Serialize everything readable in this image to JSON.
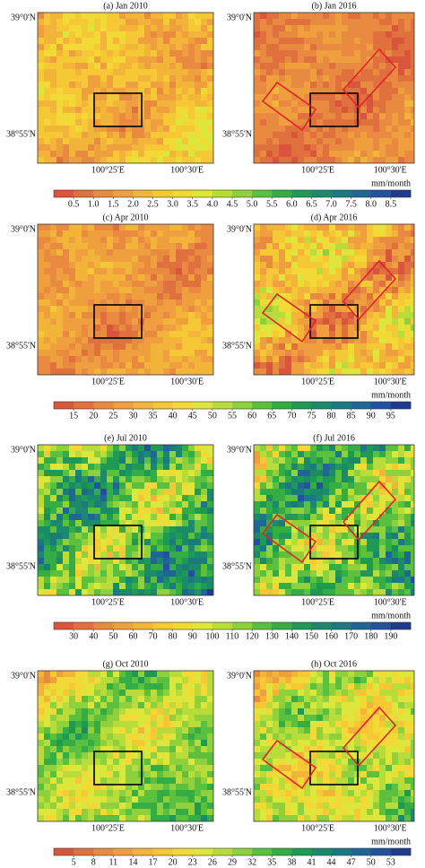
{
  "axes": {
    "lat": [
      "39°0'N",
      "38°55'N"
    ],
    "lon": [
      "100°25'E",
      "100°30'E"
    ]
  },
  "rows": [
    {
      "panels": [
        {
          "title": "(a) Jan 2010"
        },
        {
          "title": "(b) Jan 2016"
        }
      ],
      "colorbar": {
        "unit": "mm/month",
        "ticks": [
          0.5,
          1.0,
          1.5,
          2.0,
          2.5,
          3.0,
          3.5,
          4.0,
          4.5,
          5.0,
          5.5,
          6.0,
          6.5,
          7.0,
          7.5,
          8.0,
          8.5
        ]
      }
    },
    {
      "panels": [
        {
          "title": "(c) Apr 2010"
        },
        {
          "title": "(d) Apr 2016"
        }
      ],
      "colorbar": {
        "unit": "mm/month",
        "ticks": [
          15,
          20,
          25,
          30,
          35,
          40,
          45,
          50,
          55,
          60,
          65,
          70,
          75,
          80,
          85,
          90,
          95
        ]
      }
    },
    {
      "panels": [
        {
          "title": "(e) Jul 2010"
        },
        {
          "title": "(f) Jul 2016"
        }
      ],
      "colorbar": {
        "unit": "mm/month",
        "ticks": [
          30,
          40,
          50,
          60,
          70,
          80,
          90,
          100,
          110,
          120,
          130,
          140,
          150,
          160,
          170,
          180,
          190
        ]
      }
    },
    {
      "panels": [
        {
          "title": "(g) Oct 2010"
        },
        {
          "title": "(h) Oct 2016"
        }
      ],
      "colorbar": {
        "unit": "mm/month",
        "ticks": [
          5,
          8,
          11,
          14,
          17,
          20,
          23,
          26,
          29,
          32,
          35,
          38,
          41,
          44,
          47,
          50,
          53
        ]
      }
    }
  ]
}
